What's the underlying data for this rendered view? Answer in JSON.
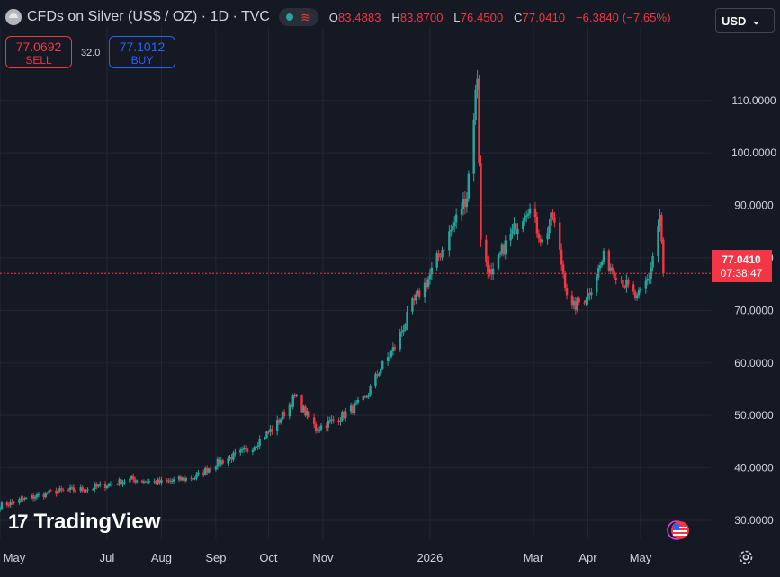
{
  "header": {
    "title": "CFDs on Silver (US$ / OZ) · 1D · TVC",
    "wave_glyph": "≋",
    "ohlc": [
      {
        "k": "O",
        "v": "83.4883"
      },
      {
        "k": "H",
        "v": "83.8700"
      },
      {
        "k": "L",
        "v": "76.4500"
      },
      {
        "k": "C",
        "v": "77.0410"
      }
    ],
    "change": "−6.3840 (−7.65%)"
  },
  "trade": {
    "sell_price": "77.0692",
    "sell_label": "SELL",
    "spread": "32.0",
    "buy_price": "77.1012",
    "buy_label": "BUY"
  },
  "currency": {
    "label": "USD",
    "arrow": "⌄"
  },
  "logo": {
    "mark": "17",
    "text": "TradingView"
  },
  "colors": {
    "up": "#26a69a",
    "down": "#f23645",
    "background": "#151924",
    "grid": "#232734",
    "last_price": "#f23645"
  },
  "chart_data": {
    "type": "candlestick",
    "title": "CFDs on Silver (US$ / OZ)",
    "interval": "1D",
    "x_tick_labels": [
      "May",
      "Jul",
      "Aug",
      "Sep",
      "Oct",
      "Nov",
      "2026",
      "Mar",
      "Apr",
      "May"
    ],
    "y_tick_labels": [
      "110.0000",
      "100.0000",
      "90.0000",
      "80.0000",
      "70.0000",
      "60.0000",
      "50.0000",
      "40.0000",
      "30.0000"
    ],
    "y_ticks": [
      110,
      100,
      90,
      80,
      70,
      60,
      50,
      40,
      30
    ],
    "ylim": [
      26.4,
      124
    ],
    "x_range": [
      "2025-05-01",
      "2026-06-10"
    ],
    "last_price_label": "77.0410",
    "countdown_label": "07:38:47",
    "last_price": 77.041,
    "series_close_anchors": [
      {
        "date": "2025-05-01",
        "close": 32.8
      },
      {
        "date": "2025-06-01",
        "close": 35.5
      },
      {
        "date": "2025-06-20",
        "close": 36.0
      },
      {
        "date": "2025-07-15",
        "close": 37.8
      },
      {
        "date": "2025-08-01",
        "close": 37.2
      },
      {
        "date": "2025-08-20",
        "close": 38.2
      },
      {
        "date": "2025-09-01",
        "close": 40.8
      },
      {
        "date": "2025-09-20",
        "close": 43.5
      },
      {
        "date": "2025-10-05",
        "close": 48.0
      },
      {
        "date": "2025-10-16",
        "close": 53.5
      },
      {
        "date": "2025-10-28",
        "close": 47.5
      },
      {
        "date": "2025-11-10",
        "close": 49.5
      },
      {
        "date": "2025-11-25",
        "close": 53.0
      },
      {
        "date": "2025-12-03",
        "close": 58.5
      },
      {
        "date": "2025-12-12",
        "close": 63.0
      },
      {
        "date": "2025-12-22",
        "close": 71.0
      },
      {
        "date": "2025-12-31",
        "close": 76.0
      },
      {
        "date": "2026-01-14",
        "close": 86.0
      },
      {
        "date": "2026-01-22",
        "close": 92.0
      },
      {
        "date": "2026-01-28",
        "close": 115.0
      },
      {
        "date": "2026-01-30",
        "close": 83.0
      },
      {
        "date": "2026-02-05",
        "close": 76.0
      },
      {
        "date": "2026-02-12",
        "close": 82.0
      },
      {
        "date": "2026-02-26",
        "close": 90.0
      },
      {
        "date": "2026-03-06",
        "close": 83.0
      },
      {
        "date": "2026-03-12",
        "close": 88.0
      },
      {
        "date": "2026-03-22",
        "close": 70.0
      },
      {
        "date": "2026-04-01",
        "close": 73.0
      },
      {
        "date": "2026-04-10",
        "close": 80.0
      },
      {
        "date": "2026-04-20",
        "close": 76.0
      },
      {
        "date": "2026-04-29",
        "close": 72.0
      },
      {
        "date": "2026-05-06",
        "close": 76.5
      },
      {
        "date": "2026-05-12",
        "close": 88.0
      },
      {
        "date": "2026-05-14",
        "close": 77.04
      }
    ]
  }
}
